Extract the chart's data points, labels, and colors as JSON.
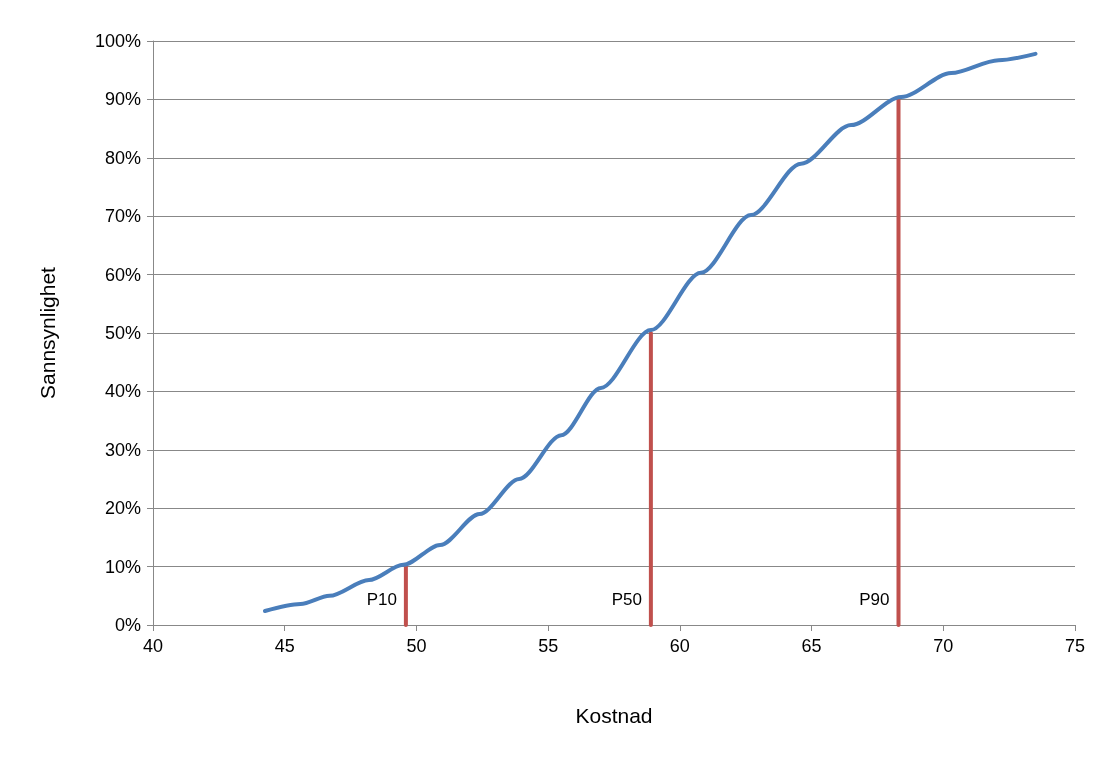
{
  "chart_data": {
    "type": "line",
    "xlabel": "Kostnad",
    "ylabel": "Sannsynlighet",
    "xlim": [
      40,
      75
    ],
    "xticks": [
      40,
      45,
      50,
      55,
      60,
      65,
      70,
      75
    ],
    "ylim": [
      0,
      100
    ],
    "yticks": [
      {
        "value": 0,
        "label": "0%"
      },
      {
        "value": 10,
        "label": "10%"
      },
      {
        "value": 20,
        "label": "20%"
      },
      {
        "value": 30,
        "label": "30%"
      },
      {
        "value": 40,
        "label": "40%"
      },
      {
        "value": 50,
        "label": "50%"
      },
      {
        "value": 60,
        "label": "60%"
      },
      {
        "value": 70,
        "label": "70%"
      },
      {
        "value": 80,
        "label": "80%"
      },
      {
        "value": 90,
        "label": "90%"
      },
      {
        "value": 100,
        "label": "100%"
      }
    ],
    "grid": "y",
    "marker": "none",
    "line_style": "solid",
    "series": [
      {
        "color": "#4a7ebb",
        "x": [
          44.25,
          45.6,
          46.7,
          48.2,
          49.5,
          50.9,
          52.4,
          53.9,
          55.5,
          57,
          58.9,
          60.8,
          62.7,
          64.6,
          66.5,
          68.4,
          70.3,
          72.1,
          73.5
        ],
        "values": [
          2.4,
          3.6,
          5,
          7.7,
          10.3,
          13.7,
          19,
          25,
          32.5,
          40.6,
          50.5,
          60.3,
          70.2,
          79,
          85.6,
          90.4,
          94.5,
          96.7,
          97.8
        ]
      },
      {
        "name": "P10",
        "color": "#c0504d",
        "x": [
          49.6,
          49.6
        ],
        "values": [
          0,
          10
        ]
      },
      {
        "name": "P50",
        "color": "#c0504d",
        "x": [
          58.9,
          58.9
        ],
        "values": [
          0,
          50
        ]
      },
      {
        "name": "P90",
        "color": "#c0504d",
        "x": [
          68.3,
          68.3
        ],
        "values": [
          0,
          90
        ]
      }
    ]
  }
}
